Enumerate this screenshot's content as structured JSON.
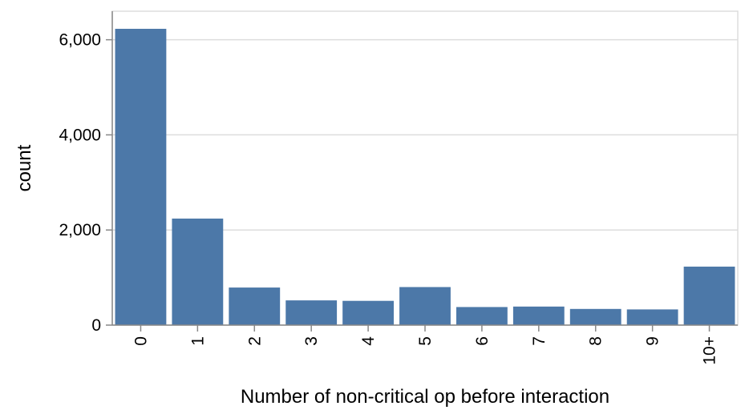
{
  "chart_data": {
    "type": "bar",
    "categories": [
      "0",
      "1",
      "2",
      "3",
      "4",
      "5",
      "6",
      "7",
      "8",
      "9",
      "10+"
    ],
    "values": [
      6230,
      2240,
      790,
      520,
      510,
      800,
      380,
      390,
      340,
      330,
      1230
    ],
    "xlabel": "Number of non-critical op before interaction",
    "ylabel": "count",
    "ylim": [
      0,
      6600
    ],
    "yticks": [
      0,
      2000,
      4000,
      6000
    ],
    "ytick_labels": [
      "0",
      "2,000",
      "4,000",
      "6,000"
    ],
    "grid": true,
    "bar_color": "#4c78a8",
    "grid_color": "#dddddd",
    "axis_color": "#888888"
  }
}
